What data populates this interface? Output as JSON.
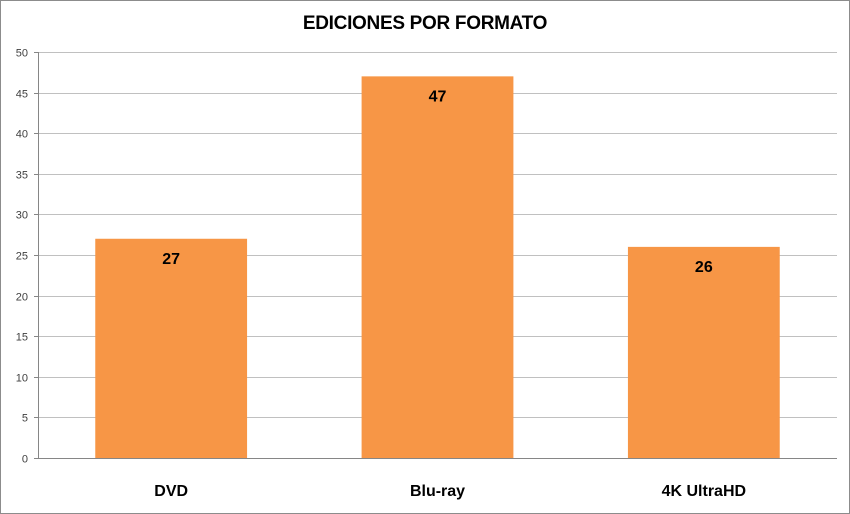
{
  "chart_data": {
    "type": "bar",
    "title": "EDICIONES POR FORMATO",
    "xlabel": "",
    "ylabel": "",
    "categories": [
      "DVD",
      "Blu-ray",
      "4K UltraHD"
    ],
    "values": [
      27,
      47,
      26
    ],
    "data_labels": [
      "27",
      "47",
      "26"
    ],
    "ylim": [
      0,
      50
    ],
    "yticks": [
      0,
      5,
      10,
      15,
      20,
      25,
      30,
      35,
      40,
      45,
      50
    ],
    "grid": true,
    "legend": "none",
    "bar_color": "#f79646",
    "grid_color": "#c0c0c0",
    "axis_color": "#868686"
  }
}
